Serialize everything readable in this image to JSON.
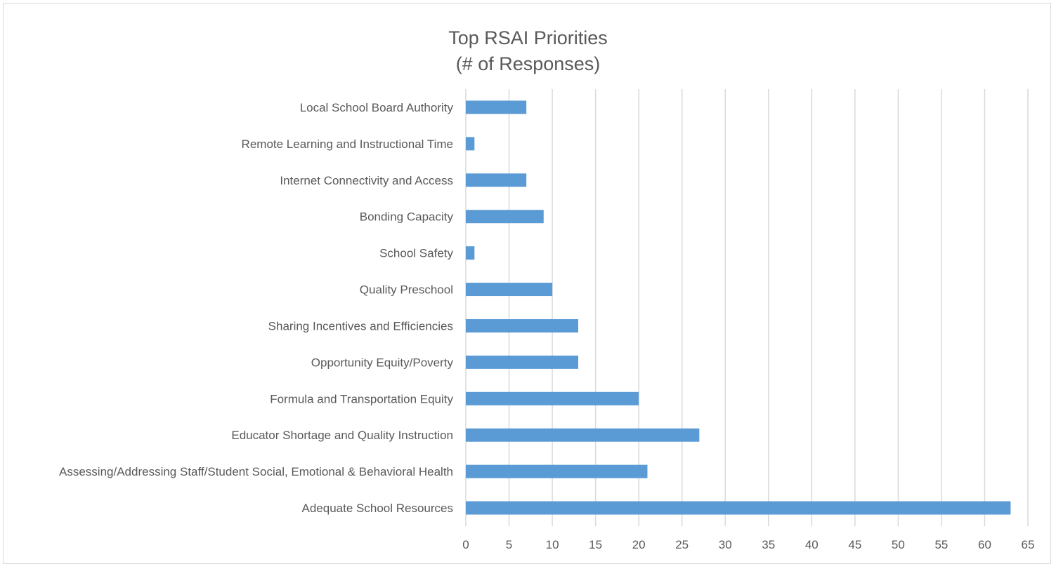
{
  "chart_data": {
    "type": "bar",
    "orientation": "horizontal",
    "title": "Top RSAI Priorities",
    "subtitle": "(# of Responses)",
    "xlabel": "",
    "ylabel": "",
    "categories": [
      "Local School Board Authority",
      "Remote Learning and Instructional Time",
      "Internet Connectivity and Access",
      "Bonding Capacity",
      "School Safety",
      "Quality Preschool",
      "Sharing Incentives and Efficiencies",
      "Opportunity Equity/Poverty",
      "Formula and Transportation Equity",
      "Educator Shortage and Quality Instruction",
      "Assessing/Addressing Staff/Student Social, Emotional & Behavioral Health",
      "Adequate School Resources"
    ],
    "values": [
      7,
      1,
      7,
      9,
      1,
      10,
      13,
      13,
      20,
      27,
      21,
      63
    ],
    "xlim": [
      0,
      65
    ],
    "xticks": [
      0,
      5,
      10,
      15,
      20,
      25,
      30,
      35,
      40,
      45,
      50,
      55,
      60,
      65
    ],
    "grid": "vertical",
    "legend": "none",
    "bar_color": "#5b9bd5",
    "grid_color": "#d9d9d9",
    "text_color": "#595959"
  }
}
